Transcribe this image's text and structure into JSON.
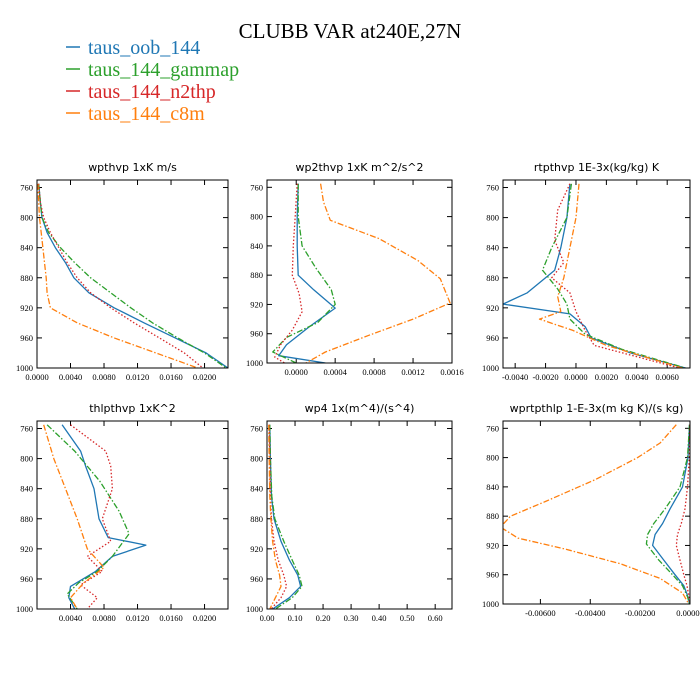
{
  "title": "CLUBB VAR at240E,27N",
  "legend": {
    "placement": "top-left",
    "items": [
      {
        "label": "taus_oob_144",
        "color": "#1f77b4",
        "dash": "solid"
      },
      {
        "label": "taus_144_gammap",
        "color": "#2ca02c",
        "dash": "dashdot"
      },
      {
        "label": "taus_144_n2thp",
        "color": "#d62728",
        "dash": "dotted"
      },
      {
        "label": "taus_144_c8m",
        "color": "#ff7f0e",
        "dash": "dashdot"
      }
    ]
  },
  "chart_data": [
    {
      "type": "line",
      "title": "wpthvp  1xK m/s",
      "xlim": [
        0,
        0.0228
      ],
      "ylim": [
        1000,
        750
      ],
      "xticks": [
        0,
        0.004,
        0.008,
        0.012,
        0.016,
        0.02
      ],
      "xticklabels": [
        "0.0000",
        "0.0040",
        "0.0080",
        "0.0120",
        "0.0160",
        "0.0200"
      ],
      "yticks": [
        760,
        800,
        840,
        880,
        920,
        960,
        1000
      ],
      "yticklabels": [
        "760",
        "800",
        "840",
        "880",
        "920",
        "960",
        "1000"
      ],
      "series": [
        {
          "name": "taus_oob_144",
          "color": "#1f77b4",
          "dash": "solid",
          "y": [
            755,
            780,
            800,
            820,
            840,
            860,
            880,
            900,
            920,
            940,
            960,
            980,
            1000
          ],
          "x": [
            0.0002,
            0.0004,
            0.0006,
            0.0012,
            0.0022,
            0.0034,
            0.0044,
            0.0062,
            0.0092,
            0.0128,
            0.0165,
            0.0202,
            0.0228
          ]
        },
        {
          "name": "taus_144_gammap",
          "color": "#2ca02c",
          "dash": "dashdot",
          "y": [
            755,
            780,
            800,
            820,
            840,
            860,
            880,
            900,
            920,
            940,
            960,
            980,
            1000
          ],
          "x": [
            0.0002,
            0.0004,
            0.0006,
            0.0014,
            0.0028,
            0.0045,
            0.0064,
            0.0088,
            0.0112,
            0.0138,
            0.0168,
            0.02,
            0.0226
          ]
        },
        {
          "name": "taus_144_n2thp",
          "color": "#d62728",
          "dash": "dotted",
          "y": [
            755,
            780,
            800,
            820,
            840,
            860,
            880,
            900,
            920,
            940,
            960,
            980,
            1000
          ],
          "x": [
            0.0002,
            0.0004,
            0.0008,
            0.0016,
            0.0026,
            0.0036,
            0.0048,
            0.0064,
            0.0088,
            0.0116,
            0.0146,
            0.0176,
            0.0198
          ]
        },
        {
          "name": "taus_144_c8m",
          "color": "#ff7f0e",
          "dash": "dashdot",
          "y": [
            755,
            780,
            800,
            820,
            840,
            860,
            880,
            900,
            920,
            940,
            960,
            980,
            1000
          ],
          "x": [
            0.0001,
            0.0002,
            0.0003,
            0.0005,
            0.0007,
            0.0009,
            0.0011,
            0.0012,
            0.0016,
            0.0048,
            0.0092,
            0.0142,
            0.0192
          ]
        }
      ]
    },
    {
      "type": "line",
      "title": "wp2thvp  1xK m^2/s^2",
      "xlim": [
        -0.0003,
        0.0016
      ],
      "ylim": [
        1000,
        750
      ],
      "xticks": [
        0,
        0.0004,
        0.0008,
        0.0012,
        0.0016
      ],
      "xticklabels": [
        "0.0000",
        "0.0004",
        "0.0008",
        "0.0012",
        "0.0016"
      ],
      "yticks": [
        760,
        800,
        840,
        880,
        920,
        960,
        1000
      ],
      "yticklabels": [
        "760",
        "800",
        "840",
        "880",
        "920",
        "960",
        "1000"
      ],
      "series": [
        {
          "name": "taus_oob_144",
          "color": "#1f77b4",
          "dash": "solid",
          "y": [
            755,
            800,
            840,
            880,
            900,
            925,
            950,
            975,
            990,
            1000
          ],
          "x": [
            2e-05,
            1e-05,
            1e-05,
            2e-05,
            0.00018,
            0.0004,
            0.00014,
            -0.0001,
            -0.00018,
            0.0003
          ]
        },
        {
          "name": "taus_144_gammap",
          "color": "#2ca02c",
          "dash": "dashdot",
          "y": [
            755,
            800,
            840,
            870,
            900,
            920,
            945,
            965,
            985,
            1000
          ],
          "x": [
            2e-05,
            2e-05,
            6e-05,
            0.0002,
            0.00036,
            0.0004,
            0.00022,
            -0.0001,
            -0.00024,
            0.0
          ]
        },
        {
          "name": "taus_144_n2thp",
          "color": "#d62728",
          "dash": "dotted",
          "y": [
            755,
            800,
            840,
            880,
            905,
            930,
            955,
            975,
            992,
            1000
          ],
          "x": [
            1e-05,
            -1e-05,
            -3e-05,
            -4e-05,
            3e-05,
            6e-05,
            -4e-05,
            -0.00016,
            -0.00022,
            -0.00012
          ]
        },
        {
          "name": "taus_144_c8m",
          "color": "#ff7f0e",
          "dash": "dashdot",
          "y": [
            755,
            780,
            805,
            830,
            860,
            885,
            918,
            940,
            962,
            985,
            1000
          ],
          "x": [
            0.00025,
            0.00028,
            0.00035,
            0.00085,
            0.00125,
            0.00148,
            0.00158,
            0.0012,
            0.00075,
            0.0003,
            0.0001
          ]
        }
      ]
    },
    {
      "type": "line",
      "title": "rtpthvp  1E-3x(kg/kg) K",
      "xlim": [
        -0.0048,
        0.0075
      ],
      "ylim": [
        1000,
        750
      ],
      "xticks": [
        -0.004,
        -0.002,
        0,
        0.002,
        0.004,
        0.006
      ],
      "xticklabels": [
        "-0.0040",
        "-0.0020",
        "0.0000",
        "0.0020",
        "0.0040",
        "0.0060"
      ],
      "yticks": [
        760,
        800,
        840,
        880,
        920,
        960,
        1000
      ],
      "yticklabels": [
        "760",
        "800",
        "840",
        "880",
        "920",
        "960",
        "1000"
      ],
      "series": [
        {
          "name": "taus_oob_144",
          "color": "#1f77b4",
          "dash": "solid",
          "y": [
            755,
            800,
            840,
            870,
            900,
            915,
            928,
            945,
            960,
            980,
            1000
          ],
          "x": [
            -0.0004,
            -0.0006,
            -0.001,
            -0.0014,
            -0.0032,
            -0.0048,
            -0.0004,
            0.0006,
            0.001,
            0.0036,
            0.0072
          ]
        },
        {
          "name": "taus_144_gammap",
          "color": "#2ca02c",
          "dash": "dashdot",
          "y": [
            755,
            800,
            840,
            870,
            895,
            915,
            935,
            955,
            975,
            1000
          ],
          "x": [
            -0.0003,
            -0.0006,
            -0.0016,
            -0.0022,
            -0.0012,
            -0.0006,
            -0.0004,
            0.0006,
            0.003,
            0.0072
          ]
        },
        {
          "name": "taus_144_n2thp",
          "color": "#d62728",
          "dash": "dotted",
          "y": [
            755,
            790,
            830,
            860,
            880,
            900,
            925,
            950,
            970,
            1000
          ],
          "x": [
            -0.0004,
            -0.0012,
            -0.0014,
            -0.0008,
            -0.0016,
            -0.0004,
            0.0,
            0.0006,
            0.0012,
            0.0068
          ]
        },
        {
          "name": "taus_144_c8m",
          "color": "#ff7f0e",
          "dash": "dashdot",
          "y": [
            755,
            800,
            840,
            880,
            905,
            925,
            935,
            950,
            970,
            1000
          ],
          "x": [
            0.0002,
            0.0,
            -0.0004,
            -0.0008,
            -0.0012,
            -0.001,
            -0.0024,
            -0.0002,
            0.002,
            0.007
          ]
        }
      ]
    },
    {
      "type": "line",
      "title": "thlpthvp  1xK^2",
      "xlim": [
        0,
        0.0228
      ],
      "ylim": [
        1000,
        750
      ],
      "xticks": [
        0.004,
        0.008,
        0.012,
        0.016,
        0.02
      ],
      "xticklabels": [
        "0.0040",
        "0.0080",
        "0.0120",
        "0.0160",
        "0.0200"
      ],
      "yticks": [
        760,
        800,
        840,
        880,
        920,
        960,
        1000
      ],
      "yticklabels": [
        "760",
        "800",
        "840",
        "880",
        "920",
        "960",
        "1000"
      ],
      "series": [
        {
          "name": "taus_oob_144",
          "color": "#1f77b4",
          "dash": "solid",
          "y": [
            755,
            790,
            810,
            840,
            880,
            905,
            915,
            930,
            950,
            970,
            985,
            1000
          ],
          "x": [
            0.003,
            0.0052,
            0.0058,
            0.0068,
            0.0074,
            0.0085,
            0.013,
            0.009,
            0.007,
            0.004,
            0.0038,
            0.0045
          ]
        },
        {
          "name": "taus_144_gammap",
          "color": "#2ca02c",
          "dash": "dashdot",
          "y": [
            755,
            790,
            830,
            870,
            900,
            930,
            950,
            965,
            980,
            1000
          ],
          "x": [
            0.0012,
            0.0045,
            0.0075,
            0.0098,
            0.011,
            0.009,
            0.0072,
            0.005,
            0.0036,
            0.0048
          ]
        },
        {
          "name": "taus_144_n2thp",
          "color": "#d62728",
          "dash": "dotted",
          "y": [
            755,
            790,
            810,
            840,
            880,
            910,
            930,
            950,
            968,
            985,
            1000
          ],
          "x": [
            0.004,
            0.0082,
            0.0088,
            0.009,
            0.0078,
            0.0088,
            0.006,
            0.0078,
            0.0052,
            0.0072,
            0.006
          ]
        },
        {
          "name": "taus_144_c8m",
          "color": "#ff7f0e",
          "dash": "dashdot",
          "y": [
            755,
            800,
            840,
            880,
            920,
            945,
            965,
            985,
            1000
          ],
          "x": [
            0.0008,
            0.002,
            0.0034,
            0.0048,
            0.006,
            0.008,
            0.0056,
            0.004,
            0.0048
          ]
        }
      ]
    },
    {
      "type": "line",
      "title": "wp4  1x(m^4)/(s^4)",
      "xlim": [
        0,
        0.66
      ],
      "ylim": [
        1000,
        750
      ],
      "xticks": [
        0,
        0.1,
        0.2,
        0.3,
        0.4,
        0.5,
        0.6
      ],
      "xticklabels": [
        "0.00",
        "0.10",
        "0.20",
        "0.30",
        "0.40",
        "0.50",
        "0.60"
      ],
      "yticks": [
        760,
        800,
        840,
        880,
        920,
        960,
        1000
      ],
      "yticklabels": [
        "760",
        "800",
        "840",
        "880",
        "920",
        "960",
        "1000"
      ],
      "series": [
        {
          "name": "taus_oob_144",
          "color": "#1f77b4",
          "dash": "solid",
          "y": [
            755,
            800,
            850,
            880,
            910,
            935,
            955,
            970,
            985,
            1000
          ],
          "x": [
            0.01,
            0.012,
            0.016,
            0.025,
            0.05,
            0.08,
            0.11,
            0.12,
            0.08,
            0.02
          ]
        },
        {
          "name": "taus_144_gammap",
          "color": "#2ca02c",
          "dash": "dashdot",
          "y": [
            755,
            800,
            850,
            880,
            910,
            935,
            955,
            970,
            985,
            1000
          ],
          "x": [
            0.01,
            0.012,
            0.017,
            0.028,
            0.06,
            0.09,
            0.115,
            0.125,
            0.09,
            0.03
          ]
        },
        {
          "name": "taus_144_n2thp",
          "color": "#d62728",
          "dash": "dotted",
          "y": [
            755,
            800,
            850,
            880,
            910,
            935,
            955,
            970,
            985,
            1000
          ],
          "x": [
            0.008,
            0.01,
            0.012,
            0.016,
            0.025,
            0.04,
            0.06,
            0.07,
            0.05,
            0.015
          ]
        },
        {
          "name": "taus_144_c8m",
          "color": "#ff7f0e",
          "dash": "dashdot",
          "y": [
            755,
            800,
            850,
            880,
            910,
            935,
            955,
            970,
            985,
            1000
          ],
          "x": [
            0.006,
            0.008,
            0.01,
            0.014,
            0.02,
            0.03,
            0.045,
            0.05,
            0.03,
            0.01
          ]
        }
      ]
    },
    {
      "type": "line",
      "title": "wprtpthlp  1-E-3x(m kg K)/(s kg)",
      "xlim": [
        -0.0075,
        0
      ],
      "ylim": [
        1000,
        750
      ],
      "xticks": [
        -0.006,
        -0.004,
        -0.002,
        0
      ],
      "xticklabels": [
        "-0.00600",
        "-0.00400",
        "-0.00200",
        "0.00000"
      ],
      "yticks": [
        760,
        800,
        840,
        880,
        920,
        960,
        1000
      ],
      "yticklabels": [
        "760",
        "800",
        "840",
        "880",
        "920",
        "960",
        "1000"
      ],
      "series": [
        {
          "name": "taus_oob_144",
          "color": "#1f77b4",
          "dash": "solid",
          "y": [
            755,
            800,
            840,
            870,
            890,
            905,
            920,
            940,
            960,
            975,
            990,
            1000
          ],
          "x": [
            -2e-05,
            -8e-05,
            -0.0003,
            -0.0008,
            -0.0011,
            -0.0014,
            -0.0015,
            -0.00105,
            -0.0006,
            -0.00025,
            -8e-05,
            -2e-05
          ]
        },
        {
          "name": "taus_144_gammap",
          "color": "#2ca02c",
          "dash": "dashdot",
          "y": [
            755,
            800,
            840,
            870,
            890,
            905,
            918,
            940,
            960,
            975,
            990,
            1000
          ],
          "x": [
            -2e-05,
            -0.0001,
            -0.0004,
            -0.001,
            -0.00145,
            -0.0017,
            -0.00175,
            -0.00125,
            -0.0007,
            -0.0003,
            -0.0001,
            -2e-05
          ]
        },
        {
          "name": "taus_144_n2thp",
          "color": "#d62728",
          "dash": "dotted",
          "y": [
            755,
            800,
            840,
            870,
            890,
            905,
            920,
            940,
            960,
            975,
            990,
            1000
          ],
          "x": [
            -1e-05,
            -3e-05,
            -0.0001,
            -0.0002,
            -0.00035,
            -0.0005,
            -0.00055,
            -0.0004,
            -0.00025,
            -0.00012,
            -4e-05,
            -1e-05
          ]
        },
        {
          "name": "taus_144_c8m",
          "color": "#ff7f0e",
          "dash": "dashdot",
          "y": [
            755,
            780,
            800,
            830,
            860,
            880,
            895,
            910,
            925,
            945,
            965,
            985,
            1000
          ],
          "x": [
            -0.00055,
            -0.0012,
            -0.0021,
            -0.0038,
            -0.0058,
            -0.0072,
            -0.0076,
            -0.0069,
            -0.005,
            -0.0028,
            -0.0012,
            -0.0003,
            -5e-05
          ]
        }
      ]
    }
  ]
}
